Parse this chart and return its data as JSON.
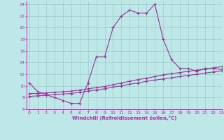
{
  "xlabel": "Windchill (Refroidissement éolien,°C)",
  "bg_color": "#bee8e8",
  "grid_color": "#99cccc",
  "line_color": "#993399",
  "line1_x": [
    0,
    1,
    2,
    3,
    4,
    5,
    6,
    7,
    8,
    9,
    10,
    11,
    12,
    13,
    14,
    15,
    16,
    17,
    18,
    19,
    20,
    21,
    22,
    23
  ],
  "line1_y": [
    10.5,
    9.0,
    8.5,
    8.0,
    7.5,
    7.0,
    7.0,
    10.5,
    15.0,
    15.0,
    20.0,
    22.0,
    23.0,
    22.5,
    22.5,
    24.0,
    18.0,
    14.5,
    13.0,
    13.0,
    12.5,
    13.0,
    13.0,
    12.8
  ],
  "line2_x": [
    0,
    1,
    2,
    3,
    4,
    5,
    6,
    7,
    8,
    9,
    10,
    11,
    12,
    13,
    14,
    15,
    16,
    17,
    18,
    19,
    20,
    21,
    22,
    23
  ],
  "line2_y": [
    8.7,
    8.7,
    8.8,
    8.9,
    9.0,
    9.1,
    9.3,
    9.5,
    9.7,
    9.9,
    10.2,
    10.5,
    10.8,
    11.1,
    11.3,
    11.6,
    11.9,
    12.1,
    12.3,
    12.5,
    12.7,
    12.9,
    13.1,
    13.3
  ],
  "line3_x": [
    0,
    1,
    2,
    3,
    4,
    5,
    6,
    7,
    8,
    9,
    10,
    11,
    12,
    13,
    14,
    15,
    16,
    17,
    18,
    19,
    20,
    21,
    22,
    23
  ],
  "line3_y": [
    8.2,
    8.3,
    8.4,
    8.5,
    8.6,
    8.7,
    8.9,
    9.1,
    9.3,
    9.5,
    9.8,
    10.0,
    10.3,
    10.5,
    10.8,
    11.0,
    11.2,
    11.4,
    11.6,
    11.8,
    12.0,
    12.2,
    12.4,
    12.6
  ],
  "xlim": [
    -0.3,
    23
  ],
  "ylim": [
    6,
    24.5
  ],
  "xticks": [
    0,
    1,
    2,
    3,
    4,
    5,
    6,
    7,
    8,
    9,
    10,
    11,
    12,
    13,
    14,
    15,
    16,
    17,
    18,
    19,
    20,
    21,
    22,
    23
  ],
  "yticks": [
    6,
    8,
    10,
    12,
    14,
    16,
    18,
    20,
    22,
    24
  ]
}
